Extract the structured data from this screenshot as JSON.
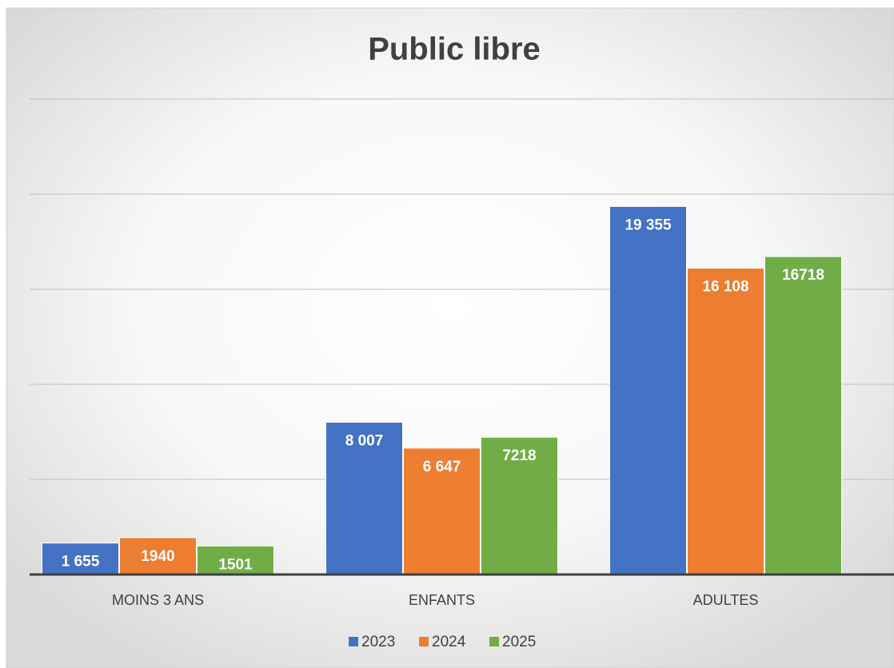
{
  "chart_data": {
    "type": "bar",
    "title": "Public libre",
    "categories": [
      "MOINS 3 ANS",
      "ENFANTS",
      "ADULTES"
    ],
    "series": [
      {
        "name": "2023",
        "color": "#4472c4",
        "values": [
          1655,
          8007,
          19355
        ],
        "value_labels": [
          "1 655",
          "8 007",
          "19 355"
        ]
      },
      {
        "name": "2024",
        "color": "#ed7d31",
        "values": [
          1940,
          6647,
          16108
        ],
        "value_labels": [
          "1940",
          "6 647",
          "16 108"
        ]
      },
      {
        "name": "2025",
        "color": "#70ad47",
        "values": [
          1501,
          7218,
          16718
        ],
        "value_labels": [
          "1501",
          "7218",
          "16718"
        ]
      }
    ],
    "ylim": [
      0,
      25000
    ],
    "yticks": [
      0,
      5000,
      10000,
      15000,
      20000,
      25000
    ],
    "grid": true,
    "legend": "bottom"
  }
}
